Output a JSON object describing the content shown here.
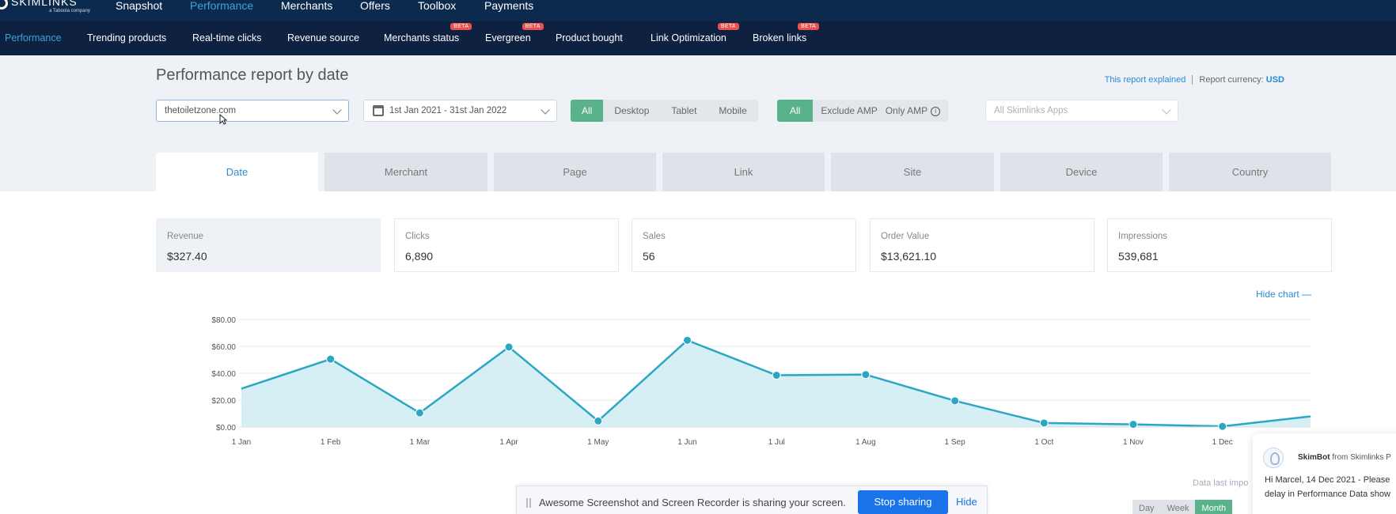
{
  "topnav": {
    "logo": "SKIMLINKS",
    "logo_sub": "a Taboola company",
    "items": [
      "Snapshot",
      "Performance",
      "Merchants",
      "Offers",
      "Toolbox",
      "Payments"
    ],
    "active": "Performance"
  },
  "subnav": {
    "items": [
      {
        "label": "Performance",
        "beta": ""
      },
      {
        "label": "Trending products",
        "beta": ""
      },
      {
        "label": "Real-time clicks",
        "beta": ""
      },
      {
        "label": "Revenue source",
        "beta": ""
      },
      {
        "label": "Merchants status",
        "beta": "BETA"
      },
      {
        "label": "Evergreen",
        "beta": "BETA"
      },
      {
        "label": "Product bought",
        "beta": ""
      },
      {
        "label": "Link Optimization",
        "beta": "BETA"
      },
      {
        "label": "Broken links",
        "beta": "BETA"
      }
    ]
  },
  "page": {
    "title": "Performance report by date",
    "explained_link": "This report explained",
    "currency_label": "Report currency:",
    "currency": "USD"
  },
  "filters": {
    "domain": "thetoiletzone.com",
    "date_range": "1st Jan 2021 - 31st Jan 2022",
    "device": [
      "All",
      "Desktop",
      "Tablet",
      "Mobile"
    ],
    "amp": [
      "All",
      "Exclude AMP",
      "Only AMP"
    ],
    "apps_placeholder": "All Skimlinks Apps"
  },
  "tabs": [
    "Date",
    "Merchant",
    "Page",
    "Link",
    "Site",
    "Device",
    "Country"
  ],
  "metrics": [
    {
      "label": "Revenue",
      "value": "$327.40"
    },
    {
      "label": "Clicks",
      "value": "6,890"
    },
    {
      "label": "Sales",
      "value": "56"
    },
    {
      "label": "Order Value",
      "value": "$13,621.10"
    },
    {
      "label": "Impressions",
      "value": "539,681"
    }
  ],
  "hide_chart": "Hide chart —",
  "chart_data": {
    "type": "area",
    "categories": [
      "1 Jan",
      "1 Feb",
      "1 Mar",
      "1 Apr",
      "1 May",
      "1 Jun",
      "1 Jul",
      "1 Aug",
      "1 Sep",
      "1 Oct",
      "1 Nov",
      "1 Dec",
      "1 Jan"
    ],
    "x_tick_labels": [
      "1 Jan",
      "1 Feb",
      "1 Mar",
      "1 Apr",
      "1 May",
      "1 Jun",
      "1 Jul",
      "1 Aug",
      "1 Sep",
      "1 Oct",
      "1 Nov",
      "1 Dec"
    ],
    "values": [
      28.5,
      50.5,
      10.5,
      59.5,
      4.5,
      64.5,
      38.5,
      39.0,
      19.5,
      3.0,
      2.0,
      0.5,
      8.0
    ],
    "y_ticks": [
      "$0.00",
      "$20.00",
      "$40.00",
      "$60.00",
      "$80.00"
    ],
    "ylim": [
      0,
      80
    ],
    "line_color": "#2ba7c4",
    "fill_color": "#cfecf2",
    "grid": true
  },
  "sharebar": {
    "text": "Awesome Screenshot and Screen Recorder is sharing your screen.",
    "stop": "Stop sharing",
    "hide": "Hide"
  },
  "data_last": "Data last impo",
  "period": [
    "Day",
    "Week",
    "Month"
  ],
  "bot": {
    "name": "SkimBot",
    "from": "from Skimlinks P",
    "msg_line1": "Hi Marcel, 14 Dec 2021 - Please",
    "msg_line2": "delay in Performance Data show"
  }
}
